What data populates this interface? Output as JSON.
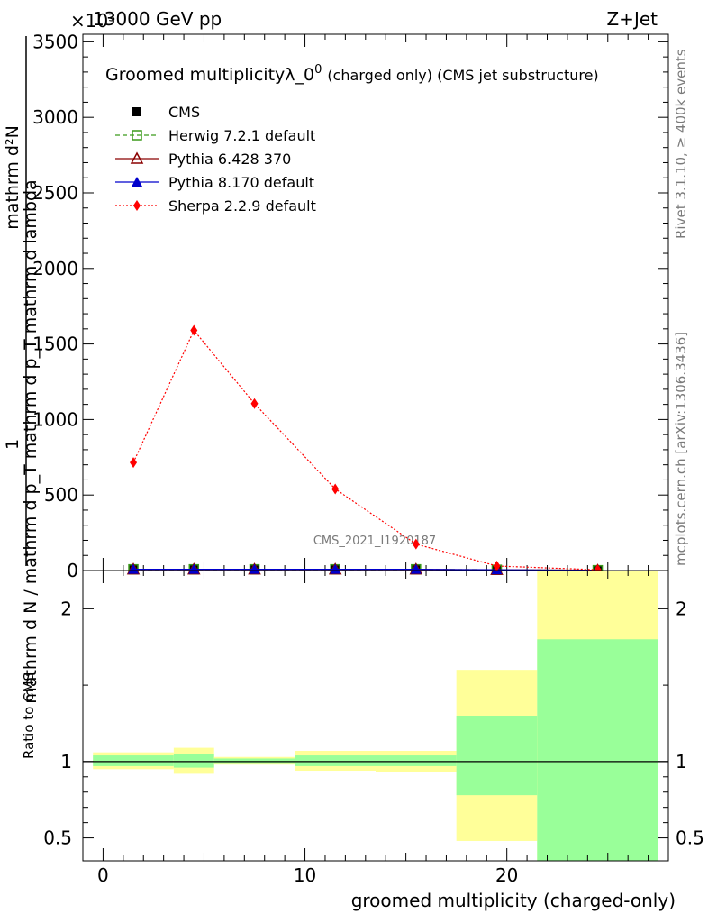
{
  "header": {
    "left": "13000 GeV pp",
    "right": "Z+Jet"
  },
  "plot_title": {
    "main": "Groomed multiplicityλ_0",
    "superscript": "0",
    "suffix": "(charged only) (CMS jet substructure)"
  },
  "side_labels": {
    "rivet": "Rivet 3.1.10, ≥ 400k events",
    "mcplots": "mcplots.cern.ch [arXiv:1306.3436]"
  },
  "watermark": "CMS_2021_I1920187",
  "y_multiplier": "×10³",
  "ylabel_numerator": "mathrm d²N",
  "ylabel_denominator": "mathrm d N / mathrm d p_T mathrm d p_T mathrm d lambda",
  "ylabel_one": "1",
  "legend": [
    {
      "label": "CMS",
      "color": "#000000",
      "marker": "filled-square",
      "line": "none"
    },
    {
      "label": "Herwig 7.2.1 default",
      "color": "#3a9a1a",
      "marker": "open-square",
      "line": "dashed"
    },
    {
      "label": "Pythia 6.428 370",
      "color": "#8b0000",
      "marker": "open-triangle",
      "line": "solid"
    },
    {
      "label": "Pythia 8.170 default",
      "color": "#0000cc",
      "marker": "filled-triangle",
      "line": "solid"
    },
    {
      "label": "Sherpa 2.2.9 default",
      "color": "#ff0000",
      "marker": "filled-diamond",
      "line": "dotted"
    }
  ],
  "chart_data": [
    {
      "type": "line",
      "panel": "main",
      "xlim": [
        -1,
        28
      ],
      "ylim": [
        0,
        3550
      ],
      "yticks": [
        0,
        500,
        1000,
        1500,
        2000,
        2500,
        3000,
        3500
      ],
      "ytick_labels": [
        "0",
        "500",
        "1000",
        "1500",
        "2000",
        "2500",
        "3000",
        "3500"
      ],
      "x": [
        1.5,
        4.5,
        7.5,
        11.5,
        15.5,
        19.5,
        24.5
      ],
      "series": [
        {
          "name": "CMS",
          "values": [
            8,
            8,
            8,
            8,
            8,
            5,
            2
          ]
        },
        {
          "name": "Herwig 7.2.1 default",
          "values": [
            8,
            8,
            8,
            8,
            8,
            5,
            2
          ]
        },
        {
          "name": "Pythia 6.428 370",
          "values": [
            8,
            8,
            8,
            8,
            8,
            5,
            2
          ]
        },
        {
          "name": "Pythia 8.170 default",
          "values": [
            8,
            8,
            8,
            8,
            8,
            5,
            2
          ]
        },
        {
          "name": "Sherpa 2.2.9 default",
          "values": [
            715,
            1590,
            1105,
            540,
            175,
            30,
            5
          ]
        }
      ]
    },
    {
      "type": "area",
      "panel": "ratio",
      "ylabel": "Ratio to CMS",
      "xlabel": "groomed multiplicity (charged-only)",
      "xlim": [
        -1,
        28
      ],
      "ylim": [
        0.35,
        2.25
      ],
      "yticks": [
        0.5,
        1,
        2
      ],
      "ytick_labels": [
        "0.5",
        "1",
        "2"
      ],
      "xticks": [
        0,
        10,
        20
      ],
      "xtick_labels": [
        "0",
        "10",
        "20"
      ],
      "bins": [
        {
          "xlo": -0.5,
          "xhi": 3.5,
          "band_lo": 0.95,
          "band_hi": 1.06,
          "inner_lo": 0.97,
          "inner_hi": 1.04
        },
        {
          "xlo": 3.5,
          "xhi": 5.5,
          "band_lo": 0.92,
          "band_hi": 1.09,
          "inner_lo": 0.96,
          "inner_hi": 1.05
        },
        {
          "xlo": 5.5,
          "xhi": 9.5,
          "band_lo": 0.98,
          "band_hi": 1.03,
          "inner_lo": 0.985,
          "inner_hi": 1.02
        },
        {
          "xlo": 9.5,
          "xhi": 13.5,
          "band_lo": 0.94,
          "band_hi": 1.07,
          "inner_lo": 0.97,
          "inner_hi": 1.04
        },
        {
          "xlo": 13.5,
          "xhi": 17.5,
          "band_lo": 0.93,
          "band_hi": 1.07,
          "inner_lo": 0.97,
          "inner_hi": 1.04
        },
        {
          "xlo": 17.5,
          "xhi": 21.5,
          "band_lo": 0.48,
          "band_hi": 1.6,
          "inner_lo": 0.78,
          "inner_hi": 1.3
        },
        {
          "xlo": 21.5,
          "xhi": 27.5,
          "band_lo": 0.35,
          "band_hi": 2.25,
          "inner_lo": 0.35,
          "inner_hi": 1.8
        }
      ],
      "outer_band_color": "#ffff99",
      "inner_band_color": "#99ff99",
      "reference_value": 1
    }
  ]
}
